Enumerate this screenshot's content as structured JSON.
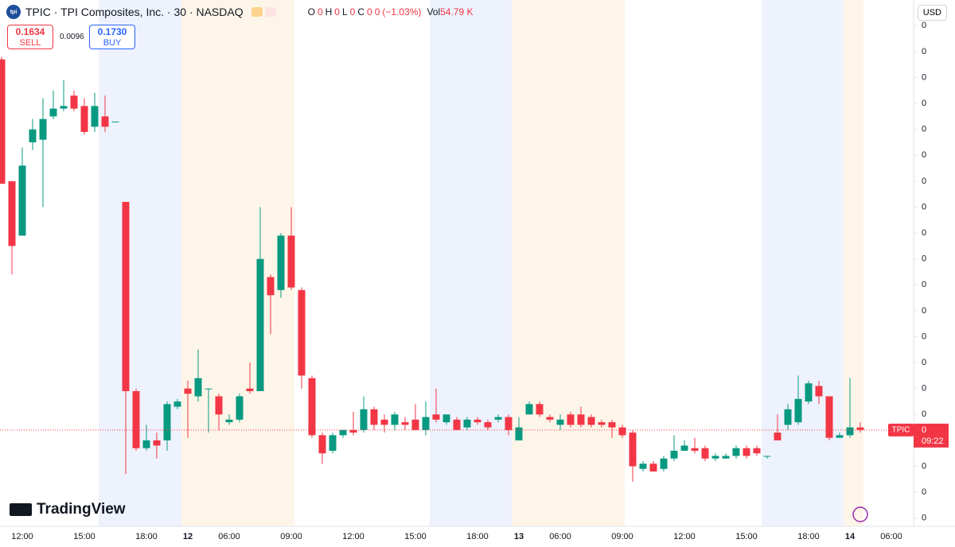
{
  "header": {
    "logo": "tpi",
    "title": "TPIC · TPI Composites, Inc. · 30 · NASDAQ",
    "ohlc": [
      {
        "label": "O",
        "value": "0"
      },
      {
        "label": "H",
        "value": "0"
      },
      {
        "label": "L",
        "value": "0"
      },
      {
        "label": "C",
        "value": "0"
      }
    ],
    "change": "0",
    "change_pct": "(−1.03%)",
    "vol_label": "Vol",
    "vol": "54.79 K"
  },
  "trade": {
    "sell": {
      "price": "0.1634",
      "label": "SELL"
    },
    "spread": "0.0096",
    "buy": {
      "price": "0.1730",
      "label": "BUY"
    }
  },
  "currency": "USD",
  "branding": "TradingView",
  "chart_data": {
    "type": "candlestick",
    "categories": [
      null,
      null,
      "12:00",
      null,
      null,
      null,
      null,
      null,
      "15:00",
      null,
      null,
      null,
      null,
      null,
      "18:00",
      null,
      null,
      null,
      "12",
      null,
      null,
      null,
      "06:00",
      null,
      null,
      null,
      null,
      null,
      "09:00",
      null,
      null,
      null,
      null,
      null,
      "12:00",
      null,
      null,
      null,
      null,
      null,
      "15:00",
      null,
      null,
      null,
      null,
      null,
      "18:00",
      null,
      null,
      null,
      "13",
      null,
      null,
      null,
      "06:00",
      null,
      null,
      null,
      null,
      null,
      "09:00",
      null,
      null,
      null,
      null,
      null,
      "12:00",
      null,
      null,
      null,
      null,
      null,
      "15:00",
      null,
      null,
      null,
      null,
      null,
      "18:00",
      null,
      null,
      null,
      "14",
      null
    ],
    "x_axis_last_label": "06:00",
    "open": [
      0.1817,
      0.177,
      0.1749,
      0.1785,
      0.1786,
      0.1795,
      0.1798,
      0.1803,
      0.1799,
      0.1791,
      0.1795,
      0.1793,
      0.1762,
      0.1689,
      0.1667,
      0.167,
      0.167,
      0.1683,
      0.169,
      0.1687,
      0.169,
      0.1687,
      0.1677,
      0.1678,
      0.169,
      0.1689,
      0.1733,
      0.1728,
      0.1749,
      0.1728,
      0.1694,
      0.1672,
      0.1666,
      0.1672,
      0.1674,
      0.1674,
      0.1682,
      0.1678,
      0.1676,
      0.1677,
      0.1678,
      0.1674,
      0.168,
      0.1677,
      0.1678,
      0.1675,
      0.1678,
      0.1677,
      0.1678,
      0.1679,
      0.167,
      0.168,
      0.1684,
      0.1679,
      0.1676,
      0.168,
      0.168,
      0.1679,
      0.1677,
      0.1677,
      0.1675,
      0.1673,
      0.1659,
      0.1661,
      0.1659,
      0.1663,
      0.1666,
      0.1667,
      0.1667,
      0.1663,
      0.1663,
      0.1664,
      0.1667,
      0.1667,
      0.1664,
      0.1673,
      0.1676,
      0.1677,
      0.1685,
      0.1691,
      0.1687,
      0.1671,
      0.1672,
      0.1675
    ],
    "high": [
      0.1818,
      0.177,
      0.1783,
      0.1794,
      0.1802,
      0.1805,
      0.1809,
      0.1805,
      0.1802,
      0.1804,
      0.1803,
      0.1793,
      0.1762,
      0.169,
      0.1676,
      0.1673,
      0.1685,
      0.1686,
      0.1693,
      0.1705,
      0.169,
      0.1688,
      0.168,
      0.1688,
      0.17,
      0.176,
      0.1734,
      0.175,
      0.176,
      0.1729,
      0.1695,
      0.1673,
      0.1673,
      0.1674,
      0.1681,
      0.1687,
      0.1683,
      0.168,
      0.1681,
      0.1679,
      0.1684,
      0.1685,
      0.169,
      0.168,
      0.1679,
      0.1679,
      0.1679,
      0.1678,
      0.168,
      0.168,
      0.1679,
      0.1685,
      0.1685,
      0.168,
      0.168,
      0.1681,
      0.1683,
      0.168,
      0.1678,
      0.1678,
      0.1676,
      0.1674,
      0.1662,
      0.1662,
      0.1664,
      0.1672,
      0.167,
      0.1671,
      0.1668,
      0.1665,
      0.1665,
      0.1668,
      0.1668,
      0.1668,
      0.1664,
      0.168,
      0.1684,
      0.1695,
      0.1693,
      0.1693,
      0.1687,
      0.1673,
      0.1694,
      0.1677
    ],
    "low": [
      0.1769,
      0.1734,
      0.1749,
      0.1782,
      0.176,
      0.1794,
      0.1797,
      0.1797,
      0.1788,
      0.1789,
      0.1789,
      0.1793,
      0.1657,
      0.1666,
      0.1666,
      0.1663,
      0.1666,
      0.1682,
      0.1671,
      0.1685,
      0.1673,
      0.1674,
      0.1676,
      0.1677,
      0.1688,
      0.1689,
      0.1711,
      0.1725,
      0.1728,
      0.169,
      0.1671,
      0.1661,
      0.1665,
      0.1671,
      0.1672,
      0.1673,
      0.1674,
      0.1673,
      0.1674,
      0.1674,
      0.1674,
      0.1672,
      0.1677,
      0.1676,
      0.1674,
      0.1674,
      0.1676,
      0.1674,
      0.1677,
      0.1672,
      0.167,
      0.168,
      0.1679,
      0.1677,
      0.1674,
      0.1675,
      0.1675,
      0.1675,
      0.1675,
      0.1671,
      0.1671,
      0.1654,
      0.1658,
      0.1658,
      0.1658,
      0.1662,
      0.1666,
      0.1665,
      0.1662,
      0.1662,
      0.1663,
      0.1663,
      0.1663,
      0.1664,
      0.1663,
      0.167,
      0.1674,
      0.1676,
      0.1684,
      0.1684,
      0.167,
      0.1671,
      0.1671,
      0.1673
    ],
    "close": [
      0.1769,
      0.1745,
      0.1776,
      0.179,
      0.1794,
      0.1798,
      0.1799,
      0.1798,
      0.1789,
      0.1799,
      0.1791,
      0.1793,
      0.1689,
      0.1667,
      0.167,
      0.1668,
      0.1684,
      0.1685,
      0.1688,
      0.1694,
      0.169,
      0.168,
      0.1678,
      0.1687,
      0.1689,
      0.174,
      0.1726,
      0.1749,
      0.1729,
      0.1695,
      0.1672,
      0.1665,
      0.1672,
      0.1674,
      0.1673,
      0.1682,
      0.1676,
      0.1676,
      0.168,
      0.1676,
      0.1674,
      0.1679,
      0.1678,
      0.168,
      0.1674,
      0.1678,
      0.1677,
      0.1675,
      0.1679,
      0.1674,
      0.1675,
      0.1684,
      0.168,
      0.1678,
      0.1678,
      0.1676,
      0.1676,
      0.1676,
      0.1676,
      0.1675,
      0.1672,
      0.166,
      0.1661,
      0.1658,
      0.1663,
      0.1666,
      0.1668,
      0.1666,
      0.1663,
      0.1664,
      0.1664,
      0.1667,
      0.1664,
      0.1665,
      0.1664,
      0.167,
      0.1682,
      0.1686,
      0.1692,
      0.1687,
      0.1671,
      0.1672,
      0.1675,
      0.1674
    ],
    "up_color": "#089981",
    "down_color": "#f23645",
    "ylim": [
      0.1635,
      0.1838
    ],
    "yticks": [
      {
        "value": 0.164,
        "label": "0"
      },
      {
        "value": 0.165,
        "label": "0"
      },
      {
        "value": 0.166,
        "label": "0"
      },
      {
        "value": 0.167,
        "label": "0"
      },
      {
        "value": 0.168,
        "label": "0"
      },
      {
        "value": 0.169,
        "label": "0"
      },
      {
        "value": 0.17,
        "label": "0"
      },
      {
        "value": 0.171,
        "label": "0"
      },
      {
        "value": 0.172,
        "label": "0"
      },
      {
        "value": 0.173,
        "label": "0"
      },
      {
        "value": 0.174,
        "label": "0"
      },
      {
        "value": 0.175,
        "label": "0"
      },
      {
        "value": 0.176,
        "label": "0"
      },
      {
        "value": 0.177,
        "label": "0"
      },
      {
        "value": 0.178,
        "label": "0"
      },
      {
        "value": 0.179,
        "label": "0"
      },
      {
        "value": 0.18,
        "label": "0"
      },
      {
        "value": 0.181,
        "label": "0"
      },
      {
        "value": 0.182,
        "label": "0"
      },
      {
        "value": 0.183,
        "label": "0"
      }
    ],
    "current_price": {
      "value": 0.1674,
      "label": "0",
      "symbol": "TPIC",
      "countdown": "09:22"
    }
  }
}
